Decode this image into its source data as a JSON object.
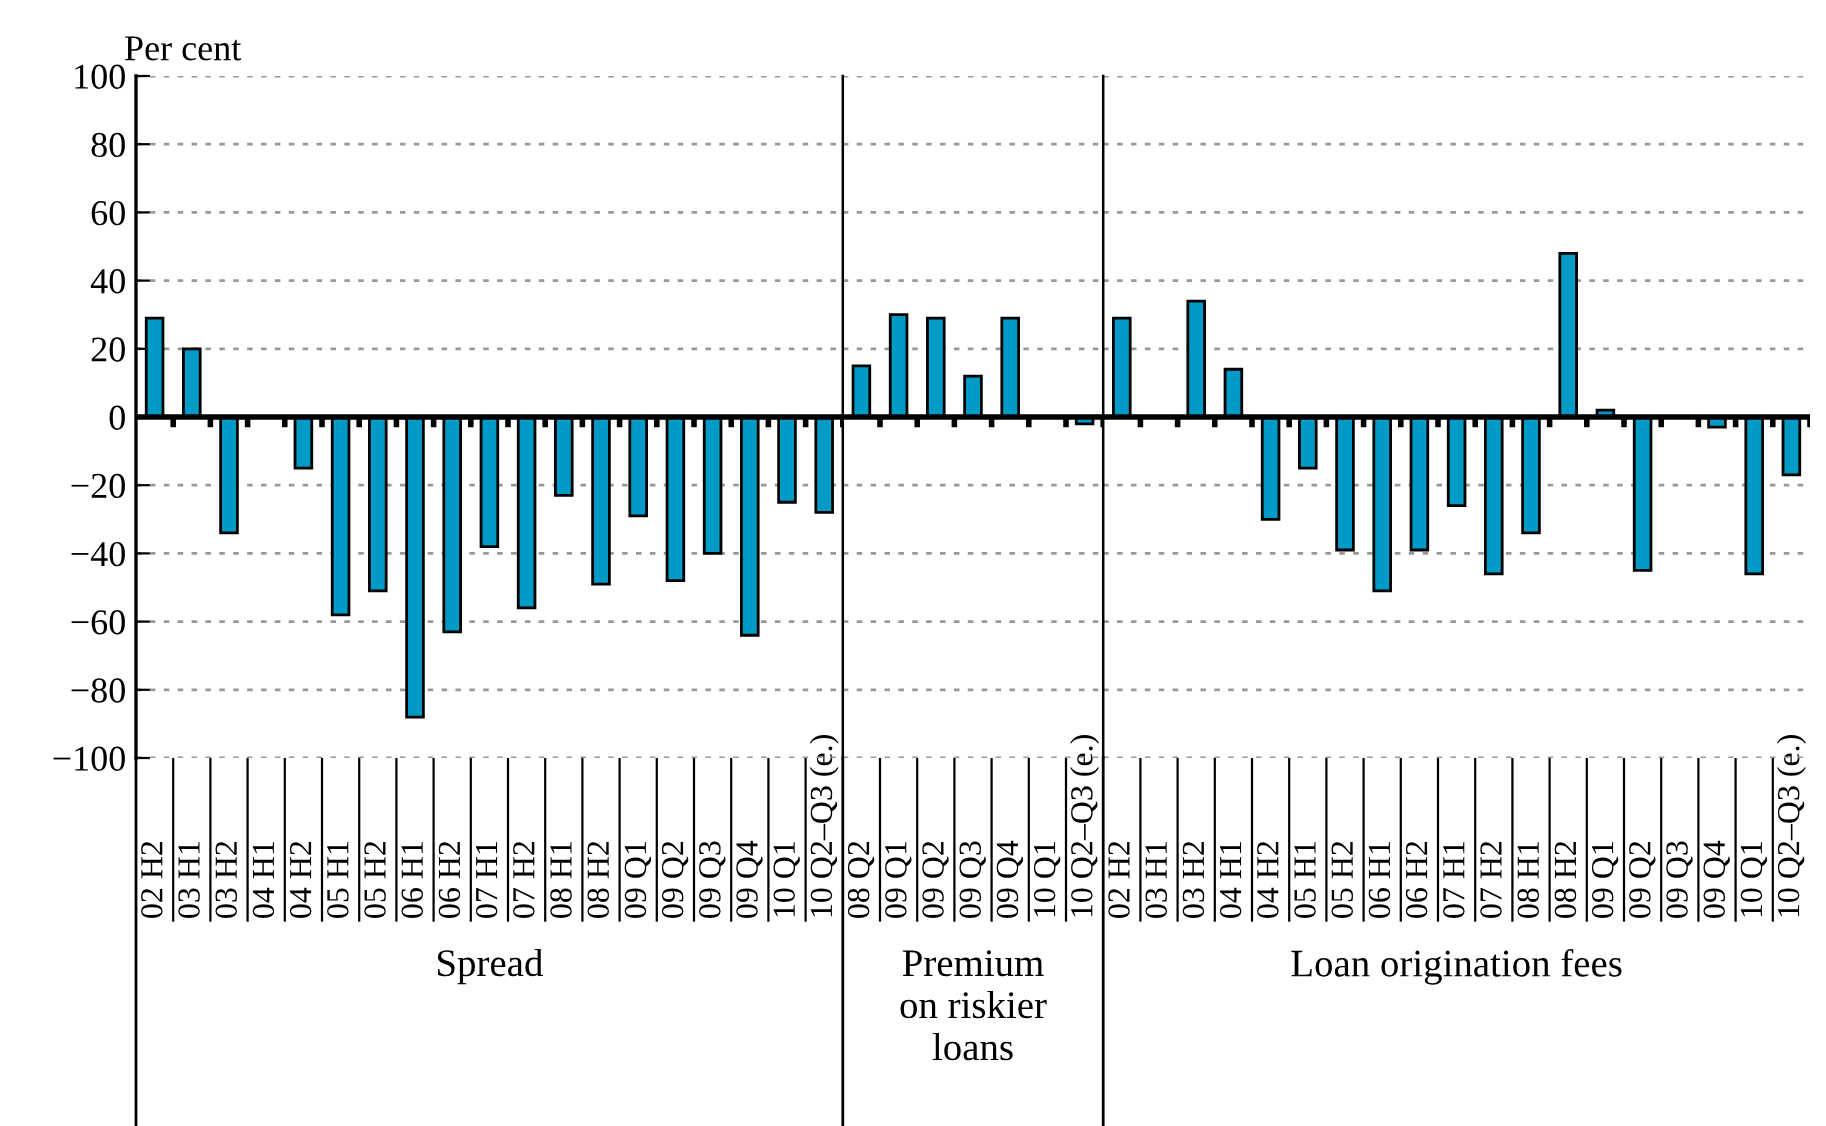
{
  "chart_data": [
    {
      "type": "bar",
      "ylabel": "Per cent",
      "xlabel": "Spread",
      "color": "#009ac6",
      "ylim": [
        -100,
        100
      ],
      "yticks": [
        -100,
        -80,
        -60,
        -40,
        -20,
        0,
        20,
        40,
        60,
        80,
        100
      ],
      "grid": "y",
      "tick_labels": "xy",
      "categories": [
        "02 H2",
        "03 H1",
        "03 H2",
        "04 H1",
        "04 H2",
        "05 H1",
        "05 H2",
        "06 H1",
        "06 H2",
        "07 H1",
        "07 H2",
        "08 H1",
        "08 H2",
        "09 Q1",
        "09 Q2",
        "09 Q3",
        "09 Q4",
        "10 Q1",
        "10 Q2–Q3 (e.)"
      ],
      "values": [
        29,
        20,
        -34,
        null,
        -15,
        -58,
        -51,
        -88,
        -63,
        -38,
        -56,
        -23,
        -49,
        -29,
        -48,
        -40,
        -64,
        -25,
        -28
      ]
    },
    {
      "type": "bar",
      "xlabel": "Premium\non riskier\nloans",
      "color": "#009ac6",
      "ylim": [
        -100,
        100
      ],
      "yticks": [
        -100,
        -80,
        -60,
        -40,
        -20,
        0,
        20,
        40,
        60,
        80,
        100
      ],
      "grid": "y",
      "tick_labels": "x",
      "categories": [
        "08 Q2",
        "09 Q1",
        "09 Q2",
        "09 Q3",
        "09 Q4",
        "10 Q1",
        "10 Q2–Q3 (e.)"
      ],
      "values": [
        15,
        30,
        29,
        12,
        29,
        null,
        -2
      ]
    },
    {
      "type": "bar",
      "xlabel": "Loan origination fees",
      "color": "#009ac6",
      "ylim": [
        -100,
        100
      ],
      "yticks": [
        -100,
        -80,
        -60,
        -40,
        -20,
        0,
        20,
        40,
        60,
        80,
        100
      ],
      "grid": "y",
      "tick_labels": "x",
      "categories": [
        "02 H2",
        "03 H1",
        "03 H2",
        "04 H1",
        "04 H2",
        "05 H1",
        "05 H2",
        "06 H1",
        "06 H2",
        "07 H1",
        "07 H2",
        "08 H1",
        "08 H2",
        "09 Q1",
        "09 Q2",
        "09 Q3",
        "09 Q4",
        "10 Q1",
        "10 Q2–Q3 (e.)"
      ],
      "values": [
        29,
        null,
        34,
        14,
        -30,
        -15,
        -39,
        -51,
        -39,
        -26,
        -46,
        -34,
        48,
        2,
        -45,
        null,
        -3,
        -46,
        -17
      ]
    }
  ]
}
